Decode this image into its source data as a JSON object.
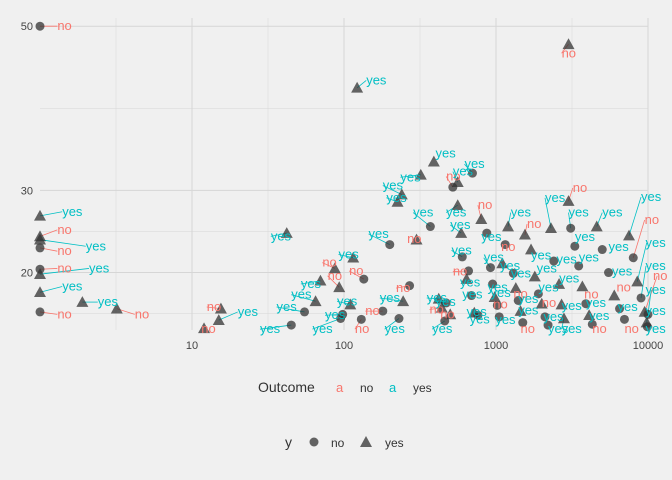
{
  "chart_data": {
    "type": "scatter",
    "x_scale": "log10",
    "xlim": [
      1,
      10000
    ],
    "ylim": [
      13,
      51
    ],
    "x_ticks": [
      "10",
      "100",
      "1000",
      "10000"
    ],
    "x_tick_values": [
      10,
      100,
      1000,
      10000
    ],
    "y_ticks": [
      "20",
      "30",
      "50"
    ],
    "y_tick_values": [
      20,
      30,
      50
    ],
    "grid": true,
    "colors": {
      "no": "#f8766d",
      "yes": "#00bfc4",
      "point": "#333333",
      "grid": "#d6d6d6",
      "background": "#f0f0f0"
    },
    "points": [
      {
        "x": 1,
        "y": 50,
        "y_class": "no",
        "label": "no",
        "lx": 1.3,
        "ly": 50
      },
      {
        "x": 1,
        "y": 26.9,
        "y_class": "yes",
        "label": "yes",
        "lx": 1.4,
        "ly": 27.4
      },
      {
        "x": 1,
        "y": 24.4,
        "y_class": "yes",
        "label": "no",
        "lx": 1.3,
        "ly": 25.2
      },
      {
        "x": 1,
        "y": 24,
        "y_class": "yes",
        "label": "yes",
        "lx": 2.0,
        "ly": 23.2
      },
      {
        "x": 1,
        "y": 23,
        "y_class": "no",
        "label": "no",
        "lx": 1.3,
        "ly": 22.6
      },
      {
        "x": 1,
        "y": 20.4,
        "y_class": "no",
        "label": "no",
        "lx": 1.3,
        "ly": 20.5
      },
      {
        "x": 1,
        "y": 19.8,
        "y_class": "yes",
        "label": "yes",
        "lx": 2.1,
        "ly": 20.5
      },
      {
        "x": 1,
        "y": 17.6,
        "y_class": "yes",
        "label": "yes",
        "lx": 1.4,
        "ly": 18.3
      },
      {
        "x": 1,
        "y": 15.2,
        "y_class": "no",
        "label": "no",
        "lx": 1.3,
        "ly": 14.9
      },
      {
        "x": 1.9,
        "y": 16.4,
        "y_class": "yes",
        "label": "yes",
        "lx": 2.4,
        "ly": 16.4
      },
      {
        "x": 3.2,
        "y": 15.6,
        "y_class": "yes",
        "label": "no",
        "lx": 4.2,
        "ly": 14.9
      },
      {
        "x": 15.5,
        "y": 15.6,
        "y_class": "yes",
        "label": "no",
        "lx": 12.5,
        "ly": 15.8
      },
      {
        "x": 15,
        "y": 14.2,
        "y_class": "yes",
        "label": "yes",
        "lx": 20,
        "ly": 15.2
      },
      {
        "x": 55,
        "y": 15.2,
        "y_class": "no",
        "label": "yes",
        "lx": 36,
        "ly": 15.8
      },
      {
        "x": 45,
        "y": 13.6,
        "y_class": "no",
        "label": "yes",
        "lx": 28,
        "ly": 13.1
      },
      {
        "x": 12,
        "y": 13.2,
        "y_class": "yes",
        "label": "no",
        "lx": 11.5,
        "ly": 13.1
      },
      {
        "x": 42,
        "y": 24.8,
        "y_class": "yes",
        "label": "yes",
        "lx": 33,
        "ly": 24.4
      },
      {
        "x": 65,
        "y": 16.5,
        "y_class": "yes",
        "label": "yes",
        "lx": 45,
        "ly": 17.3
      },
      {
        "x": 70,
        "y": 19,
        "y_class": "yes",
        "label": "yes",
        "lx": 52,
        "ly": 18.6
      },
      {
        "x": 95,
        "y": 14.4,
        "y_class": "no",
        "label": "yes",
        "lx": 62,
        "ly": 13.1
      },
      {
        "x": 98,
        "y": 14.9,
        "y_class": "no",
        "label": "yes",
        "lx": 75,
        "ly": 14.8
      },
      {
        "x": 87,
        "y": 20.5,
        "y_class": "yes",
        "label": "no",
        "lx": 72,
        "ly": 21.2
      },
      {
        "x": 93,
        "y": 18.2,
        "y_class": "yes",
        "label": "no",
        "lx": 78,
        "ly": 19.6
      },
      {
        "x": 110,
        "y": 16.1,
        "y_class": "yes",
        "label": "yes",
        "lx": 90,
        "ly": 16.5
      },
      {
        "x": 122,
        "y": 42.5,
        "y_class": "yes",
        "label": "yes",
        "lx": 140,
        "ly": 43.4
      },
      {
        "x": 115,
        "y": 21.8,
        "y_class": "yes",
        "label": "yes",
        "lx": 92,
        "ly": 22.2
      },
      {
        "x": 135,
        "y": 19.2,
        "y_class": "no",
        "label": "no",
        "lx": 108,
        "ly": 20.2
      },
      {
        "x": 130,
        "y": 14.3,
        "y_class": "no",
        "label": "no",
        "lx": 118,
        "ly": 13.1
      },
      {
        "x": 180,
        "y": 15.3,
        "y_class": "no",
        "label": "no",
        "lx": 138,
        "ly": 15.3
      },
      {
        "x": 200,
        "y": 23.4,
        "y_class": "no",
        "label": "yes",
        "lx": 145,
        "ly": 24.7
      },
      {
        "x": 240,
        "y": 29.5,
        "y_class": "yes",
        "label": "yes",
        "lx": 180,
        "ly": 30.6
      },
      {
        "x": 225,
        "y": 28.6,
        "y_class": "yes",
        "label": "yes",
        "lx": 190,
        "ly": 29.1
      },
      {
        "x": 245,
        "y": 16.5,
        "y_class": "yes",
        "label": "yes",
        "lx": 172,
        "ly": 16.9
      },
      {
        "x": 230,
        "y": 14.4,
        "y_class": "no",
        "label": "yes",
        "lx": 185,
        "ly": 13.1
      },
      {
        "x": 270,
        "y": 18.4,
        "y_class": "no",
        "label": "no",
        "lx": 220,
        "ly": 18.1
      },
      {
        "x": 300,
        "y": 24,
        "y_class": "yes",
        "label": "no",
        "lx": 260,
        "ly": 24.1
      },
      {
        "x": 320,
        "y": 31.9,
        "y_class": "yes",
        "label": "yes",
        "lx": 235,
        "ly": 31.6
      },
      {
        "x": 390,
        "y": 33.5,
        "y_class": "yes",
        "label": "yes",
        "lx": 400,
        "ly": 34.5
      },
      {
        "x": 370,
        "y": 25.6,
        "y_class": "no",
        "label": "yes",
        "lx": 285,
        "ly": 27.3
      },
      {
        "x": 440,
        "y": 15.7,
        "y_class": "yes",
        "label": "no",
        "lx": 365,
        "ly": 15.5
      },
      {
        "x": 420,
        "y": 16.8,
        "y_class": "yes",
        "label": "yes",
        "lx": 350,
        "ly": 16.9
      },
      {
        "x": 470,
        "y": 16.3,
        "y_class": "no",
        "label": "yes",
        "lx": 400,
        "ly": 16.4
      },
      {
        "x": 460,
        "y": 14.1,
        "y_class": "no",
        "label": "yes",
        "lx": 380,
        "ly": 13.1
      },
      {
        "x": 500,
        "y": 14.9,
        "y_class": "yes",
        "label": "no",
        "lx": 430,
        "ly": 14.9
      },
      {
        "x": 520,
        "y": 30.4,
        "y_class": "no",
        "label": "no",
        "lx": 470,
        "ly": 31.7
      },
      {
        "x": 560,
        "y": 31,
        "y_class": "yes",
        "label": "yes",
        "lx": 520,
        "ly": 32.3
      },
      {
        "x": 560,
        "y": 28.2,
        "y_class": "yes",
        "label": "yes",
        "lx": 470,
        "ly": 27.3
      },
      {
        "x": 590,
        "y": 24.8,
        "y_class": "yes",
        "label": "yes",
        "lx": 500,
        "ly": 25.8
      },
      {
        "x": 600,
        "y": 21.9,
        "y_class": "no",
        "label": "yes",
        "lx": 510,
        "ly": 22.7
      },
      {
        "x": 660,
        "y": 20.2,
        "y_class": "no",
        "label": "no",
        "lx": 520,
        "ly": 20.1
      },
      {
        "x": 640,
        "y": 19.2,
        "y_class": "yes",
        "label": "yes",
        "lx": 580,
        "ly": 18.8
      },
      {
        "x": 690,
        "y": 17.2,
        "y_class": "no",
        "label": "yes",
        "lx": 600,
        "ly": 17.3
      },
      {
        "x": 720,
        "y": 15.1,
        "y_class": "yes",
        "label": "yes",
        "lx": 640,
        "ly": 15.2
      },
      {
        "x": 760,
        "y": 14.8,
        "y_class": "no",
        "label": "yes",
        "lx": 670,
        "ly": 14.3
      },
      {
        "x": 700,
        "y": 32.1,
        "y_class": "no",
        "label": "yes",
        "lx": 620,
        "ly": 33.2
      },
      {
        "x": 800,
        "y": 26.5,
        "y_class": "yes",
        "label": "no",
        "lx": 760,
        "ly": 28.2
      },
      {
        "x": 870,
        "y": 24.8,
        "y_class": "no",
        "label": "yes",
        "lx": 800,
        "ly": 24.3
      },
      {
        "x": 920,
        "y": 20.6,
        "y_class": "no",
        "label": "yes",
        "lx": 830,
        "ly": 21.8
      },
      {
        "x": 950,
        "y": 18.6,
        "y_class": "no",
        "label": "yes",
        "lx": 880,
        "ly": 18.2
      },
      {
        "x": 980,
        "y": 17,
        "y_class": "yes",
        "label": "yes",
        "lx": 920,
        "ly": 17.5
      },
      {
        "x": 1020,
        "y": 16,
        "y_class": "no",
        "label": "no",
        "lx": 960,
        "ly": 16.1
      },
      {
        "x": 1050,
        "y": 14.6,
        "y_class": "no",
        "label": "yes",
        "lx": 990,
        "ly": 14.2
      },
      {
        "x": 1100,
        "y": 21.1,
        "y_class": "yes",
        "label": "yes",
        "lx": 1060,
        "ly": 20.8
      },
      {
        "x": 1150,
        "y": 23.4,
        "y_class": "no",
        "label": "no",
        "lx": 1080,
        "ly": 23.1
      },
      {
        "x": 1200,
        "y": 25.6,
        "y_class": "yes",
        "label": "yes",
        "lx": 1250,
        "ly": 27.3
      },
      {
        "x": 1300,
        "y": 19.9,
        "y_class": "no",
        "label": "yes",
        "lx": 1250,
        "ly": 19.9
      },
      {
        "x": 1350,
        "y": 18.1,
        "y_class": "yes",
        "label": "no",
        "lx": 1300,
        "ly": 17.4
      },
      {
        "x": 1400,
        "y": 16.6,
        "y_class": "no",
        "label": "yes",
        "lx": 1400,
        "ly": 16.8
      },
      {
        "x": 1450,
        "y": 15.3,
        "y_class": "yes",
        "label": "yes",
        "lx": 1400,
        "ly": 15.4
      },
      {
        "x": 1500,
        "y": 13.9,
        "y_class": "no",
        "label": "no",
        "lx": 1450,
        "ly": 13.1
      },
      {
        "x": 1550,
        "y": 24.6,
        "y_class": "yes",
        "label": "no",
        "lx": 1600,
        "ly": 25.9
      },
      {
        "x": 1700,
        "y": 22.8,
        "y_class": "yes",
        "label": "yes",
        "lx": 1700,
        "ly": 22.1
      },
      {
        "x": 1800,
        "y": 19.5,
        "y_class": "yes",
        "label": "yes",
        "lx": 1850,
        "ly": 20.5
      },
      {
        "x": 1900,
        "y": 17.4,
        "y_class": "no",
        "label": "yes",
        "lx": 1900,
        "ly": 18.2
      },
      {
        "x": 2000,
        "y": 16.2,
        "y_class": "yes",
        "label": "no",
        "lx": 2000,
        "ly": 16.3
      },
      {
        "x": 2100,
        "y": 14.6,
        "y_class": "no",
        "label": "yes",
        "lx": 2050,
        "ly": 14.6
      },
      {
        "x": 2200,
        "y": 13.6,
        "y_class": "no",
        "label": "yes",
        "lx": 2200,
        "ly": 13.1
      },
      {
        "x": 2300,
        "y": 25.4,
        "y_class": "yes",
        "label": "yes",
        "lx": 2100,
        "ly": 29.1
      },
      {
        "x": 2400,
        "y": 21.4,
        "y_class": "no",
        "label": "yes",
        "lx": 2500,
        "ly": 21.6
      },
      {
        "x": 2600,
        "y": 18.6,
        "y_class": "yes",
        "label": "yes",
        "lx": 2600,
        "ly": 19.3
      },
      {
        "x": 2700,
        "y": 16.1,
        "y_class": "yes",
        "label": "yes",
        "lx": 2700,
        "ly": 15.9
      },
      {
        "x": 2800,
        "y": 14.4,
        "y_class": "yes",
        "label": "yes",
        "lx": 2700,
        "ly": 13.1
      },
      {
        "x": 3000,
        "y": 47.8,
        "y_class": "yes",
        "label": "no",
        "lx": 2700,
        "ly": 46.7
      },
      {
        "x": 3000,
        "y": 28.7,
        "y_class": "yes",
        "label": "no",
        "lx": 3200,
        "ly": 30.3
      },
      {
        "x": 3100,
        "y": 25.4,
        "y_class": "no",
        "label": "yes",
        "lx": 3000,
        "ly": 27.3
      },
      {
        "x": 3300,
        "y": 23.2,
        "y_class": "no",
        "label": "yes",
        "lx": 3300,
        "ly": 24.3
      },
      {
        "x": 3500,
        "y": 20.8,
        "y_class": "no",
        "label": "yes",
        "lx": 3500,
        "ly": 21.8
      },
      {
        "x": 3700,
        "y": 18.3,
        "y_class": "yes",
        "label": "no",
        "lx": 3800,
        "ly": 17.3
      },
      {
        "x": 3900,
        "y": 16.2,
        "y_class": "no",
        "label": "yes",
        "lx": 3900,
        "ly": 16.3
      },
      {
        "x": 4100,
        "y": 14.8,
        "y_class": "yes",
        "label": "yes",
        "lx": 4100,
        "ly": 14.7
      },
      {
        "x": 4300,
        "y": 13.7,
        "y_class": "no",
        "label": "no",
        "lx": 4300,
        "ly": 13.1
      },
      {
        "x": 4600,
        "y": 25.6,
        "y_class": "yes",
        "label": "yes",
        "lx": 5000,
        "ly": 27.3
      },
      {
        "x": 5000,
        "y": 22.8,
        "y_class": "no",
        "label": "yes",
        "lx": 5500,
        "ly": 23.1
      },
      {
        "x": 5500,
        "y": 20,
        "y_class": "no",
        "label": "yes",
        "lx": 5800,
        "ly": 20.1
      },
      {
        "x": 6000,
        "y": 17.2,
        "y_class": "yes",
        "label": "no",
        "lx": 6200,
        "ly": 18.2
      },
      {
        "x": 6500,
        "y": 15.6,
        "y_class": "no",
        "label": "yes",
        "lx": 6300,
        "ly": 15.8
      },
      {
        "x": 7000,
        "y": 14.3,
        "y_class": "no",
        "label": "no",
        "lx": 7000,
        "ly": 13.1
      },
      {
        "x": 7500,
        "y": 24.5,
        "y_class": "yes",
        "label": "yes",
        "lx": 9000,
        "ly": 29.2
      },
      {
        "x": 8000,
        "y": 21.8,
        "y_class": "no",
        "label": "no",
        "lx": 9500,
        "ly": 26.4
      },
      {
        "x": 8500,
        "y": 18.9,
        "y_class": "yes",
        "label": "yes",
        "lx": 9800,
        "ly": 23.6
      },
      {
        "x": 9000,
        "y": 16.9,
        "y_class": "no",
        "label": "yes",
        "lx": 9700,
        "ly": 20.8
      },
      {
        "x": 9500,
        "y": 15.2,
        "y_class": "yes",
        "label": "no",
        "lx": 11500,
        "ly": 19.6
      },
      {
        "x": 10000,
        "y": 14.9,
        "y_class": "no",
        "label": "yes",
        "lx": 10500,
        "ly": 17.9
      },
      {
        "x": 9800,
        "y": 13.9,
        "y_class": "yes",
        "label": "yes",
        "lx": 10000,
        "ly": 15.3
      },
      {
        "x": 9900,
        "y": 13.4,
        "y_class": "no",
        "label": "yes",
        "lx": 10000,
        "ly": 13.1
      }
    ],
    "legend": {
      "position": "bottom",
      "outcome_title": "Outcome",
      "outcome_key_glyph": "a",
      "outcome_items": [
        "no",
        "yes"
      ],
      "y_title": "y",
      "y_items": [
        {
          "label": "no",
          "shape": "circle"
        },
        {
          "label": "yes",
          "shape": "triangle"
        }
      ]
    }
  }
}
